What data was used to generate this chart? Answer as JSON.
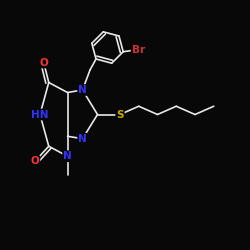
{
  "background_color": "#080808",
  "bond_color": "#e8e8e8",
  "atom_colors": {
    "N": "#3333ff",
    "O": "#ff3333",
    "S": "#ccaa00",
    "Br": "#cc3333",
    "C": "#e8e8e8"
  },
  "font_size_atom": 7.5,
  "lw": 1.2
}
